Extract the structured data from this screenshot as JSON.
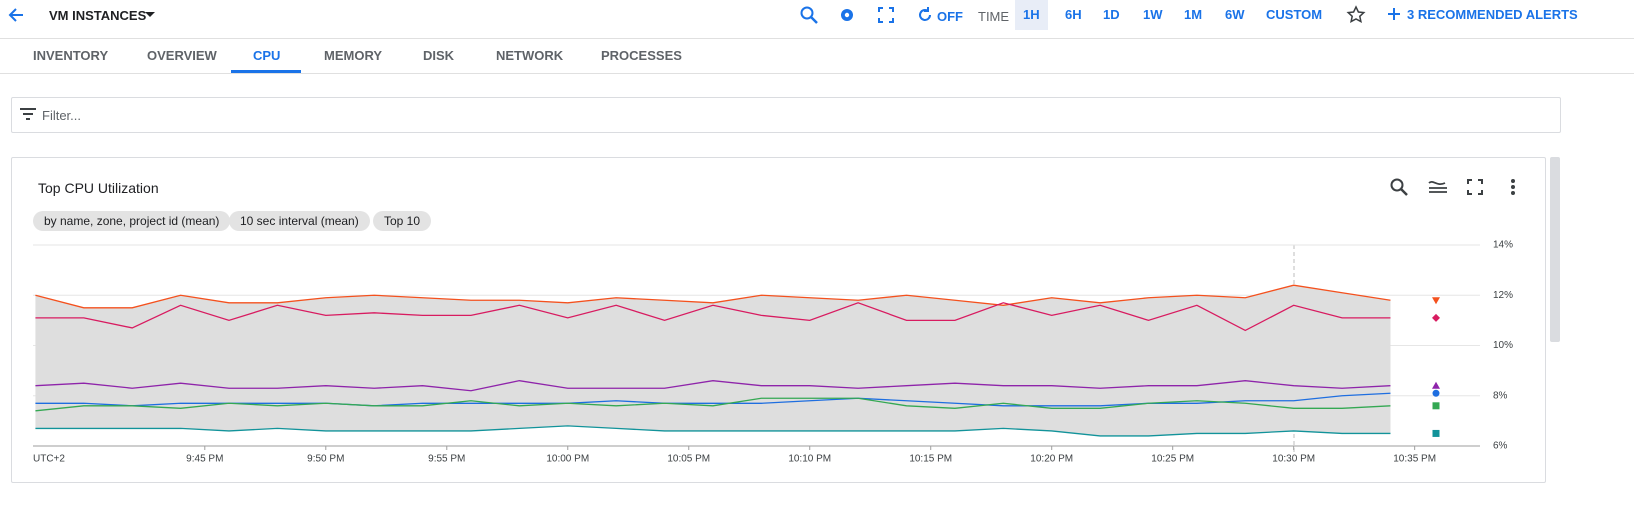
{
  "header": {
    "title": "VM INSTANCES",
    "refresh": "OFF",
    "time_label": "TIME",
    "ranges": [
      "1H",
      "6H",
      "1D",
      "1W",
      "1M",
      "6W",
      "CUSTOM"
    ],
    "alerts": "3 RECOMMENDED ALERTS"
  },
  "tabs": [
    "INVENTORY",
    "OVERVIEW",
    "CPU",
    "MEMORY",
    "DISK",
    "NETWORK",
    "PROCESSES"
  ],
  "filter_placeholder": "Filter...",
  "chart_data": {
    "type": "line",
    "title": "Top CPU Utilization",
    "chips": [
      "by name, zone, project id (mean)",
      "10 sec interval (mean)",
      "Top 10"
    ],
    "timezone": "UTC+2",
    "x": [
      1298,
      1300,
      1302,
      1304,
      1306,
      1308,
      1310,
      1312,
      1314,
      1316,
      1318,
      1320,
      1322,
      1324,
      1326,
      1328,
      1330,
      1332,
      1334,
      1336,
      1338,
      1340,
      1342,
      1344,
      1346,
      1348,
      1350,
      1352,
      1354
    ],
    "xlim": [
      1297.9,
      1357.7
    ],
    "xticks": [
      {
        "value": 1305,
        "label": "9:45 PM"
      },
      {
        "value": 1310,
        "label": "9:50 PM"
      },
      {
        "value": 1315,
        "label": "9:55 PM"
      },
      {
        "value": 1320,
        "label": "10:00 PM"
      },
      {
        "value": 1325,
        "label": "10:05 PM"
      },
      {
        "value": 1330,
        "label": "10:10 PM"
      },
      {
        "value": 1335,
        "label": "10:15 PM"
      },
      {
        "value": 1340,
        "label": "10:20 PM"
      },
      {
        "value": 1345,
        "label": "10:25 PM"
      },
      {
        "value": 1350,
        "label": "10:30 PM"
      },
      {
        "value": 1355,
        "label": "10:35 PM"
      }
    ],
    "ylim": [
      6,
      14
    ],
    "yticks": [
      {
        "value": 6,
        "label": "6%"
      },
      {
        "value": 8,
        "label": "8%"
      },
      {
        "value": 10,
        "label": "10%"
      },
      {
        "value": 12,
        "label": "12%"
      },
      {
        "value": 14,
        "label": "14%"
      }
    ],
    "grid": true,
    "series": [
      {
        "color": "#f4511e",
        "values": [
          12.0,
          11.5,
          11.5,
          12.0,
          11.7,
          11.7,
          11.9,
          12.0,
          11.9,
          11.8,
          11.8,
          11.7,
          11.9,
          11.8,
          11.7,
          12.0,
          11.9,
          11.8,
          12.0,
          11.8,
          11.6,
          11.9,
          11.7,
          11.9,
          12.0,
          11.9,
          12.4,
          12.1,
          11.8
        ]
      },
      {
        "color": "#d81b60",
        "values": [
          11.1,
          11.1,
          10.7,
          11.6,
          11.0,
          11.6,
          11.2,
          11.3,
          11.2,
          11.2,
          11.6,
          11.1,
          11.6,
          11.0,
          11.6,
          11.2,
          11.0,
          11.7,
          11.0,
          11.0,
          11.7,
          11.2,
          11.6,
          11.0,
          11.6,
          10.6,
          11.6,
          11.1,
          11.1
        ]
      },
      {
        "color": "#8e24aa",
        "values": [
          8.4,
          8.5,
          8.3,
          8.5,
          8.3,
          8.3,
          8.4,
          8.3,
          8.4,
          8.2,
          8.6,
          8.3,
          8.3,
          8.3,
          8.6,
          8.4,
          8.4,
          8.3,
          8.4,
          8.5,
          8.4,
          8.4,
          8.3,
          8.4,
          8.4,
          8.6,
          8.4,
          8.3,
          8.4
        ]
      },
      {
        "color": "#1e6ee0",
        "values": [
          7.7,
          7.7,
          7.6,
          7.7,
          7.7,
          7.7,
          7.7,
          7.6,
          7.7,
          7.7,
          7.7,
          7.7,
          7.8,
          7.7,
          7.7,
          7.7,
          7.8,
          7.9,
          7.8,
          7.7,
          7.6,
          7.6,
          7.6,
          7.7,
          7.7,
          7.8,
          7.8,
          8.0,
          8.1
        ]
      },
      {
        "color": "#34a853",
        "values": [
          7.4,
          7.6,
          7.6,
          7.5,
          7.7,
          7.6,
          7.7,
          7.6,
          7.6,
          7.8,
          7.6,
          7.7,
          7.6,
          7.7,
          7.6,
          7.9,
          7.9,
          7.9,
          7.6,
          7.5,
          7.7,
          7.5,
          7.5,
          7.7,
          7.8,
          7.7,
          7.5,
          7.5,
          7.6
        ]
      },
      {
        "color": "#12939a",
        "values": [
          6.7,
          6.7,
          6.7,
          6.7,
          6.6,
          6.7,
          6.6,
          6.6,
          6.6,
          6.6,
          6.7,
          6.8,
          6.7,
          6.6,
          6.6,
          6.6,
          6.6,
          6.6,
          6.6,
          6.6,
          6.7,
          6.6,
          6.4,
          6.4,
          6.5,
          6.5,
          6.6,
          6.5,
          6.5
        ]
      }
    ]
  }
}
